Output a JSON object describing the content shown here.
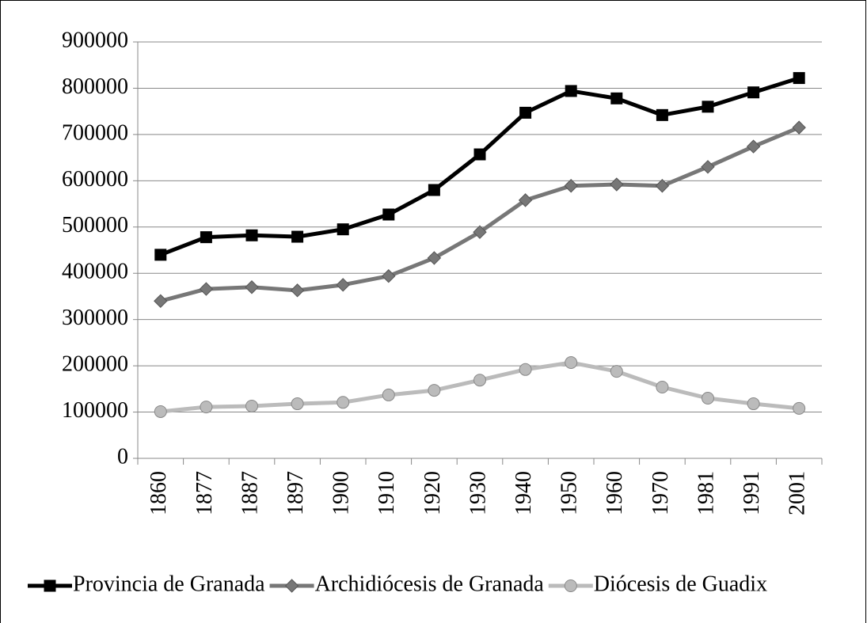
{
  "chart_data": {
    "type": "line",
    "categories": [
      "1860",
      "1877",
      "1887",
      "1897",
      "1900",
      "1910",
      "1920",
      "1930",
      "1940",
      "1950",
      "1960",
      "1970",
      "1981",
      "1991",
      "2001"
    ],
    "series": [
      {
        "name": "Provincia de Granada",
        "color": "#000000",
        "marker": "square",
        "values": [
          440000,
          478000,
          482000,
          479000,
          495000,
          527000,
          580000,
          657000,
          747000,
          794000,
          778000,
          742000,
          760000,
          791000,
          822000
        ]
      },
      {
        "name": "Archidiócesis de Granada",
        "color": "#777777",
        "marker": "diamond",
        "values": [
          340000,
          366000,
          370000,
          363000,
          375000,
          394000,
          433000,
          489000,
          558000,
          589000,
          592000,
          589000,
          630000,
          674000,
          715000
        ]
      },
      {
        "name": "Diócesis de Guadix",
        "color": "#bbbbbb",
        "marker": "circle",
        "values": [
          101000,
          111000,
          113000,
          118000,
          121000,
          137000,
          147000,
          169000,
          192000,
          207000,
          188000,
          154000,
          130000,
          118000,
          108000
        ]
      }
    ],
    "ylim": [
      0,
      900000
    ],
    "yticks": [
      0,
      100000,
      200000,
      300000,
      400000,
      500000,
      600000,
      700000,
      800000,
      900000
    ],
    "grid": true,
    "legend": "bottom"
  }
}
